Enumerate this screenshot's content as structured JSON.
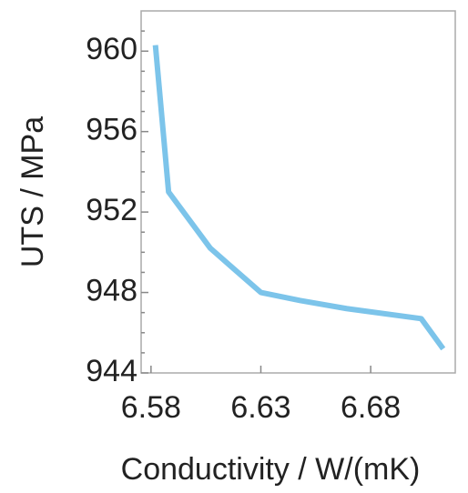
{
  "chart_data": {
    "type": "line",
    "x_label": "Conductivity / W/(mK)",
    "y_label": "UTS / MPa",
    "x": [
      6.582,
      6.588,
      6.607,
      6.63,
      6.648,
      6.669,
      6.703,
      6.713
    ],
    "series": [
      {
        "name": "UTS",
        "color": "#7cc4ea",
        "values": [
          960.3,
          953,
          950.2,
          948,
          947.6,
          947.2,
          946.7,
          945.2
        ]
      }
    ],
    "xlim": [
      6.5755,
      6.7185
    ],
    "xticks": [
      6.58,
      6.63,
      6.68
    ],
    "ylim": [
      944,
      962
    ],
    "yticks": [
      944,
      948,
      952,
      956,
      960
    ],
    "yminorticks": [
      945,
      946,
      947,
      949,
      950,
      951,
      953,
      954,
      955,
      957,
      958,
      959,
      961
    ]
  }
}
